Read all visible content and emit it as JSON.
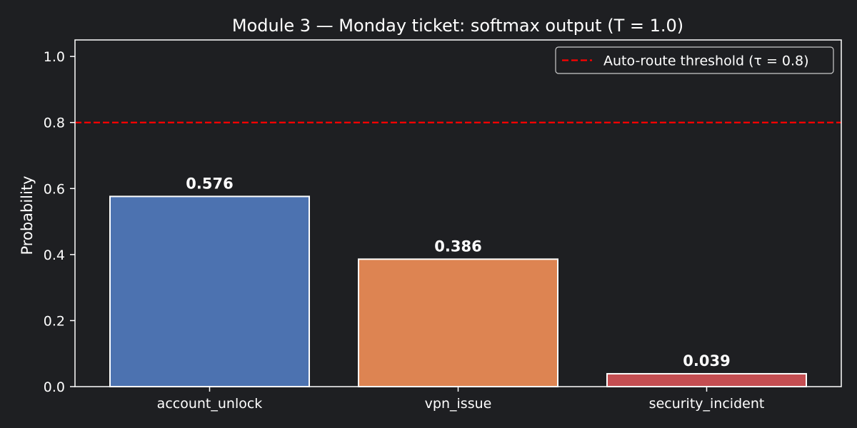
{
  "chart_data": {
    "type": "bar",
    "title": "Module 3 — Monday ticket: softmax output (T = 1.0)",
    "xlabel": "",
    "ylabel": "Probability",
    "categories": [
      "account_unlock",
      "vpn_issue",
      "security_incident"
    ],
    "values": [
      0.576,
      0.386,
      0.039
    ],
    "value_labels": [
      "0.576",
      "0.386",
      "0.039"
    ],
    "bar_colors": [
      "#4c72b0",
      "#dd8452",
      "#c44e52"
    ],
    "ylim": [
      0,
      1.05
    ],
    "yticks": [
      0.0,
      0.2,
      0.4,
      0.6,
      0.8,
      1.0
    ],
    "ytick_labels": [
      "0.0",
      "0.2",
      "0.4",
      "0.6",
      "0.8",
      "1.0"
    ],
    "grid": false,
    "threshold": {
      "value": 0.8,
      "label": "Auto-route threshold (τ = 0.8)",
      "color": "#ff0000",
      "style": "dashed"
    },
    "legend": {
      "placement": "top-right"
    },
    "colors": {
      "background": "#1e1f22",
      "axes": "#ffffff",
      "text": "#ffffff",
      "bar_edge": "#ffffff"
    }
  }
}
